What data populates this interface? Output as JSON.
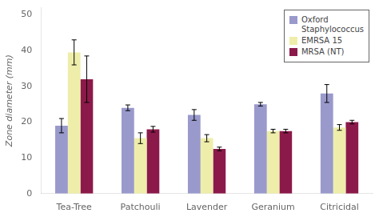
{
  "chart_data": {
    "type": "bar",
    "categories": [
      "Tea-Tree",
      "Patchouli",
      "Lavender",
      "Geranium",
      "Citricidal"
    ],
    "series": [
      {
        "name": "Oxford\nStaphylococcus",
        "color": "#9999cc",
        "values": [
          19,
          24,
          22,
          25,
          28
        ],
        "errors": [
          2,
          0.8,
          1.5,
          0.5,
          2.5
        ]
      },
      {
        "name": "EMRSA 15",
        "color": "#eeeeaa",
        "values": [
          39.5,
          15.5,
          15.5,
          17.5,
          18.5
        ],
        "errors": [
          3.5,
          1.5,
          1.0,
          0.5,
          0.8
        ]
      },
      {
        "name": "MRSA (NT)",
        "color": "#8b1a4a",
        "values": [
          32,
          18,
          12.5,
          17.5,
          20
        ],
        "errors": [
          6.5,
          0.8,
          0.5,
          0.5,
          0.5
        ]
      }
    ],
    "ylabel": "Zone diameter (mm)",
    "ylim": [
      0,
      52
    ],
    "yticks": [
      0,
      10,
      20,
      30,
      40,
      50
    ],
    "grid": false,
    "legend": "upper right"
  }
}
